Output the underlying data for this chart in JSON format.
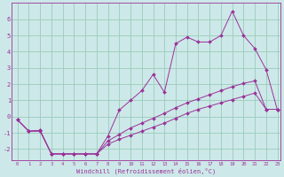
{
  "xlabel": "Windchill (Refroidissement éolien,°C)",
  "background_color": "#cde8e8",
  "grid_color": "#99ccbb",
  "line_color": "#993399",
  "xlim": [
    -0.5,
    23.3
  ],
  "ylim": [
    -2.7,
    7.0
  ],
  "xticks": [
    0,
    1,
    2,
    3,
    4,
    5,
    6,
    7,
    8,
    9,
    10,
    11,
    12,
    13,
    14,
    15,
    16,
    17,
    18,
    19,
    20,
    21,
    22,
    23
  ],
  "yticks": [
    -2,
    -1,
    0,
    1,
    2,
    3,
    4,
    5,
    6
  ],
  "line1_x": [
    0,
    1,
    2,
    3,
    4,
    5,
    6,
    7,
    8,
    9,
    10,
    11,
    12,
    13,
    14,
    15,
    16,
    17,
    18,
    19,
    20,
    21,
    22,
    23
  ],
  "line1_y": [
    -0.2,
    -0.9,
    -0.9,
    -2.3,
    -2.3,
    -2.3,
    -2.3,
    -2.3,
    -1.2,
    0.4,
    1.0,
    1.6,
    2.6,
    1.5,
    4.5,
    4.9,
    4.6,
    4.6,
    5.0,
    6.5,
    5.0,
    4.2,
    2.9,
    0.4
  ],
  "line2_x": [
    0,
    1,
    2,
    3,
    4,
    5,
    6,
    7,
    8,
    9,
    10,
    11,
    12,
    13,
    14,
    15,
    16,
    17,
    18,
    19,
    20,
    21,
    22,
    23
  ],
  "line2_y": [
    -0.2,
    -0.9,
    -0.85,
    -2.3,
    -2.3,
    -2.3,
    -2.3,
    -2.3,
    -1.5,
    -1.1,
    -0.7,
    -0.4,
    -0.1,
    0.2,
    0.55,
    0.85,
    1.1,
    1.35,
    1.6,
    1.85,
    2.05,
    2.2,
    0.45,
    0.45
  ],
  "line3_x": [
    0,
    1,
    2,
    3,
    4,
    5,
    6,
    7,
    8,
    9,
    10,
    11,
    12,
    13,
    14,
    15,
    16,
    17,
    18,
    19,
    20,
    21,
    22,
    23
  ],
  "line3_y": [
    -0.2,
    -0.9,
    -0.85,
    -2.3,
    -2.3,
    -2.3,
    -2.3,
    -2.3,
    -1.7,
    -1.4,
    -1.15,
    -0.9,
    -0.65,
    -0.4,
    -0.1,
    0.2,
    0.45,
    0.65,
    0.85,
    1.05,
    1.25,
    1.45,
    0.45,
    0.45
  ]
}
